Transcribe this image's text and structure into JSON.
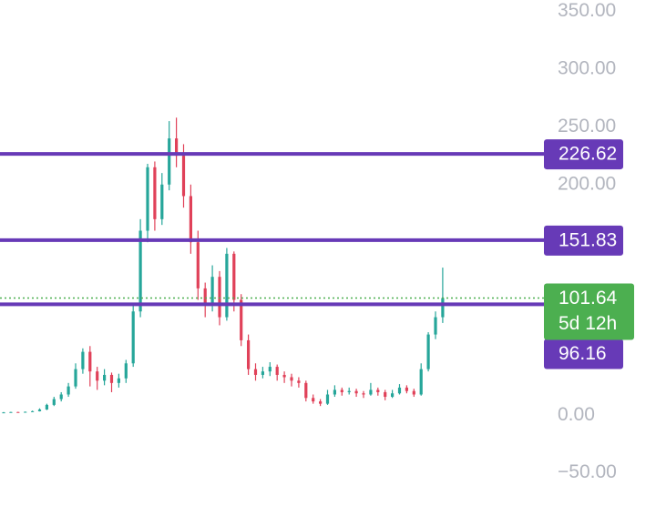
{
  "chart_data": {
    "type": "candlestick",
    "open": [
      2.4,
      2.5,
      2.8,
      2.6,
      3,
      3.5,
      5,
      9,
      14,
      18,
      25,
      40,
      55,
      38,
      30,
      35,
      28,
      32,
      45,
      90,
      160,
      215,
      170,
      200,
      240,
      225,
      190,
      150,
      110,
      95,
      120,
      85,
      140,
      100,
      65,
      40,
      35,
      38,
      42,
      35,
      33,
      30,
      28,
      15,
      12,
      10,
      18,
      22,
      20,
      21,
      19,
      18,
      22,
      20,
      16,
      19,
      24,
      21,
      18,
      40,
      70,
      85
    ],
    "high": [
      2.8,
      3,
      3,
      3.2,
      4,
      6,
      10,
      16,
      20,
      28,
      45,
      58,
      60,
      42,
      40,
      37,
      36,
      48,
      95,
      170,
      218,
      220,
      210,
      255,
      258,
      235,
      200,
      160,
      115,
      130,
      125,
      145,
      142,
      105,
      70,
      45,
      42,
      46,
      44,
      38,
      36,
      33,
      30,
      18,
      14,
      22,
      26,
      24,
      24,
      23,
      21,
      28,
      24,
      22,
      22,
      27,
      26,
      23,
      45,
      72,
      90,
      128
    ],
    "low": [
      2.2,
      2.3,
      2.4,
      2.5,
      2.9,
      3.3,
      4.5,
      8,
      12,
      16,
      23,
      36,
      25,
      22,
      26,
      20,
      24,
      28,
      42,
      85,
      150,
      160,
      165,
      195,
      215,
      180,
      140,
      100,
      85,
      90,
      78,
      82,
      90,
      60,
      35,
      30,
      32,
      34,
      30,
      28,
      25,
      24,
      12,
      10,
      8,
      9,
      16,
      17,
      18,
      16,
      15,
      17,
      17,
      13,
      15,
      18,
      19,
      16,
      17,
      38,
      66,
      80
    ],
    "close": [
      2.5,
      2.8,
      2.6,
      3,
      3.5,
      5,
      9,
      14,
      18,
      25,
      40,
      55,
      38,
      30,
      35,
      28,
      32,
      45,
      90,
      160,
      215,
      170,
      200,
      240,
      225,
      190,
      150,
      110,
      95,
      120,
      85,
      140,
      100,
      65,
      40,
      35,
      38,
      42,
      35,
      33,
      30,
      28,
      15,
      12,
      10,
      18,
      22,
      20,
      21,
      19,
      18,
      22,
      20,
      16,
      19,
      24,
      21,
      18,
      40,
      70,
      85,
      101.64
    ],
    "up_color": "#26a69a",
    "down_color": "#e04159",
    "ylim": [
      -96,
      360
    ],
    "yticks": [
      {
        "value": 350,
        "label": "350.00"
      },
      {
        "value": 300,
        "label": "300.00"
      },
      {
        "value": 250,
        "label": "250.00"
      },
      {
        "value": 200,
        "label": "200.00"
      },
      {
        "value": 0,
        "label": "0.00"
      },
      {
        "value": -50,
        "label": "−50.00"
      }
    ],
    "levels": [
      226.62,
      151.83,
      96.16
    ],
    "level_color": "#673ab7",
    "last_price": 101.64,
    "countdown": "5d 12h",
    "last_color": "#4caf50"
  }
}
